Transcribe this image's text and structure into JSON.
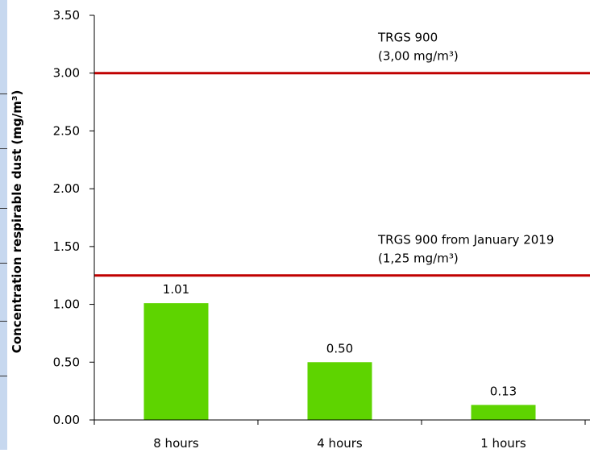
{
  "chart_data": {
    "type": "bar",
    "title": "",
    "xlabel": "",
    "ylabel": "Concentration respirable dust (mg/m³)",
    "categories": [
      "8 hours",
      "4 hours",
      "1 hours"
    ],
    "values": [
      1.01,
      0.5,
      0.13
    ],
    "data_labels": [
      "1.01",
      "0.50",
      "0.13"
    ],
    "ylim": [
      0,
      3.5
    ],
    "yticks": [
      0,
      0.5,
      1.0,
      1.5,
      2.0,
      2.5,
      3.0,
      3.5
    ],
    "ytick_labels": [
      "0.00",
      "0.50",
      "1.00",
      "1.50",
      "2.00",
      "2.50",
      "3.00",
      "3.50"
    ],
    "grid": false,
    "legend": "none",
    "bar_color": "#5ed400",
    "reference_lines": [
      {
        "value": 3.0,
        "label_line1": "TRGS 900",
        "label_line2": "(3,00 mg/m³)",
        "color": "#c00000"
      },
      {
        "value": 1.25,
        "label_line1": "TRGS 900 from January 2019",
        "label_line2": "(1,25 mg/m³)",
        "color": "#c00000"
      }
    ]
  }
}
